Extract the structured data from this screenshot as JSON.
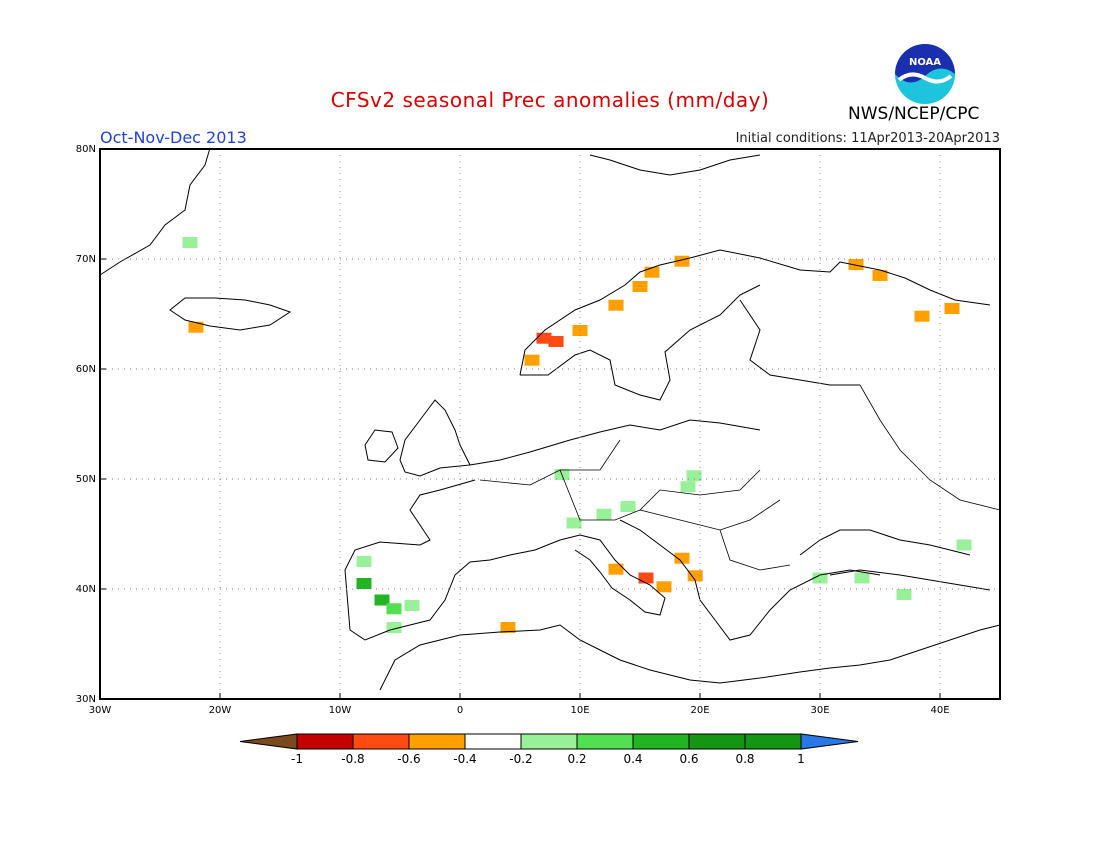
{
  "header": {
    "title": "CFSv2 seasonal Prec anomalies (mm/day)",
    "season": "Oct-Nov-Dec 2013",
    "initial_conditions": "Initial conditions: 11Apr2013-20Apr2013",
    "agency": "NWS/NCEP/CPC",
    "logo_text": "NOAA"
  },
  "axes": {
    "lat_labels": [
      "80N",
      "70N",
      "60N",
      "50N",
      "40N",
      "30N"
    ],
    "lon_labels": [
      "30W",
      "20W",
      "10W",
      "0",
      "10E",
      "20E",
      "30E",
      "40E"
    ]
  },
  "colorbar": {
    "labels": [
      "-1",
      "-0.8",
      "-0.6",
      "-0.4",
      "-0.2",
      "0.2",
      "0.4",
      "0.6",
      "0.8",
      "1"
    ],
    "colors": [
      "#7a4a1e",
      "#c40000",
      "#ff4a14",
      "#ffa000",
      "#ffffff",
      "#98f098",
      "#52e052",
      "#22b422",
      "#149614",
      "#2878e6"
    ]
  },
  "chart_data": {
    "type": "heatmap",
    "title": "CFSv2 seasonal Prec anomalies (mm/day)",
    "units": "mm/day",
    "grid": "dotted every 10 degrees",
    "lon_range": [
      -30,
      45
    ],
    "lat_range": [
      30,
      80
    ],
    "anomaly_cells": [
      {
        "lon": -22,
        "lat": 63.8,
        "value": -0.3
      },
      {
        "lon": -22.5,
        "lat": 71.5,
        "value": 0.3
      },
      {
        "lon": 6,
        "lat": 60.8,
        "value": -0.3
      },
      {
        "lon": 8,
        "lat": 62.5,
        "value": -0.4
      },
      {
        "lon": 7,
        "lat": 62.8,
        "value": -0.55
      },
      {
        "lon": 10,
        "lat": 63.5,
        "value": -0.3
      },
      {
        "lon": 13,
        "lat": 65.8,
        "value": -0.3
      },
      {
        "lon": 15,
        "lat": 67.5,
        "value": -0.3
      },
      {
        "lon": 16,
        "lat": 68.8,
        "value": -0.3
      },
      {
        "lon": 18.5,
        "lat": 69.8,
        "value": -0.3
      },
      {
        "lon": 33,
        "lat": 69.5,
        "value": -0.3
      },
      {
        "lon": 35,
        "lat": 68.5,
        "value": -0.3
      },
      {
        "lon": 38.5,
        "lat": 64.8,
        "value": -0.3
      },
      {
        "lon": 41,
        "lat": 65.5,
        "value": -0.3
      },
      {
        "lon": 8.5,
        "lat": 50.4,
        "value": 0.3
      },
      {
        "lon": 19.5,
        "lat": 50.3,
        "value": 0.3
      },
      {
        "lon": 19,
        "lat": 49.3,
        "value": 0.3
      },
      {
        "lon": 12,
        "lat": 46.8,
        "value": 0.3
      },
      {
        "lon": 9.5,
        "lat": 46,
        "value": 0.3
      },
      {
        "lon": 14,
        "lat": 47.5,
        "value": 0.3
      },
      {
        "lon": 42,
        "lat": 44,
        "value": 0.3
      },
      {
        "lon": -8,
        "lat": 42.5,
        "value": 0.3
      },
      {
        "lon": -8,
        "lat": 40.5,
        "value": 0.6
      },
      {
        "lon": -6.5,
        "lat": 39,
        "value": 0.75
      },
      {
        "lon": -5.5,
        "lat": 38.2,
        "value": 0.5
      },
      {
        "lon": -4,
        "lat": 38.5,
        "value": 0.3
      },
      {
        "lon": -5.5,
        "lat": 36.5,
        "value": 0.3
      },
      {
        "lon": 4,
        "lat": 36.5,
        "value": -0.3
      },
      {
        "lon": 13,
        "lat": 41.8,
        "value": -0.3
      },
      {
        "lon": 15.5,
        "lat": 41,
        "value": -0.55
      },
      {
        "lon": 17,
        "lat": 40.2,
        "value": -0.3
      },
      {
        "lon": 18.5,
        "lat": 42.8,
        "value": -0.3
      },
      {
        "lon": 19.6,
        "lat": 41.2,
        "value": -0.3
      },
      {
        "lon": 30,
        "lat": 41,
        "value": 0.3
      },
      {
        "lon": 33.5,
        "lat": 41,
        "value": 0.3
      },
      {
        "lon": 37,
        "lat": 39.5,
        "value": 0.3
      }
    ]
  }
}
